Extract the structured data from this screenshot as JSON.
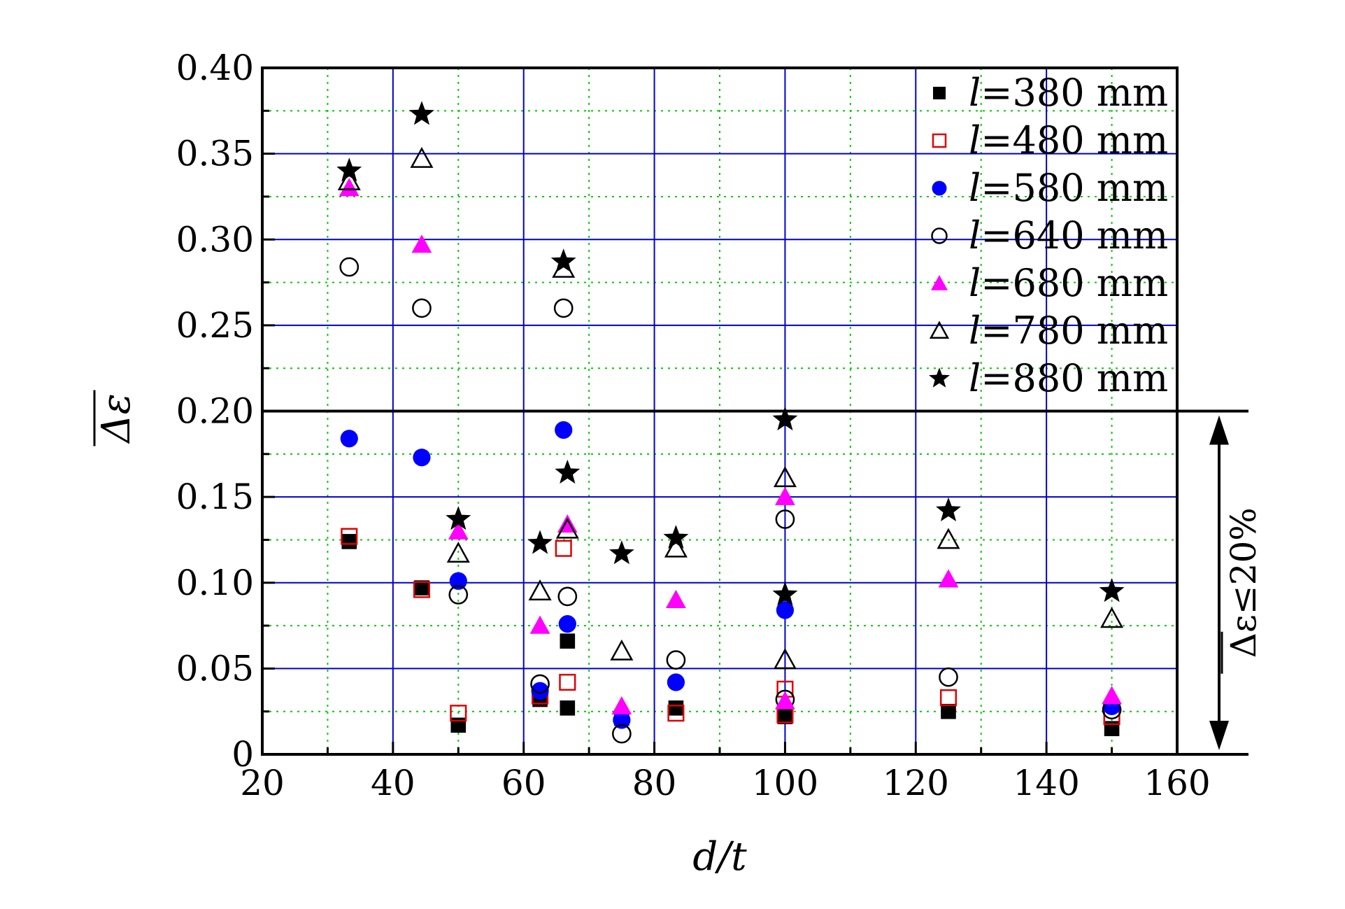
{
  "chart_data": {
    "type": "scatter",
    "xlabel": "d/t",
    "ylabel": "Δε",
    "xlim": [
      20,
      160
    ],
    "ylim": [
      0,
      0.4
    ],
    "x_ticks": [
      "20",
      "40",
      "60",
      "80",
      "100",
      "120",
      "140",
      "160"
    ],
    "y_ticks": [
      "0",
      "0.05",
      "0.10",
      "0.15",
      "0.20",
      "0.25",
      "0.30",
      "0.35",
      "0.40"
    ],
    "grid": true,
    "legend_position": "top-right",
    "threshold": {
      "y": 0.2,
      "label": "Δε≤20%"
    },
    "series": [
      {
        "name": "l=380 mm",
        "label_var": "l",
        "label_rest": "=380 mm",
        "marker": "square-filled",
        "color": "#000000",
        "points": [
          [
            33.3,
            0.124
          ],
          [
            44.4,
            0.097
          ],
          [
            50,
            0.017
          ],
          [
            62.5,
            0.032
          ],
          [
            66.7,
            0.066
          ],
          [
            66.7,
            0.027
          ],
          [
            75,
            0.021
          ],
          [
            83.3,
            0.027
          ],
          [
            100,
            0.022
          ],
          [
            125,
            0.025
          ],
          [
            150,
            0.015
          ]
        ]
      },
      {
        "name": "l=480 mm",
        "label_var": "l",
        "label_rest": "=480 mm",
        "marker": "square-open",
        "color": "#e00000",
        "points": [
          [
            33.3,
            0.127
          ],
          [
            44.4,
            0.096
          ],
          [
            50,
            0.024
          ],
          [
            62.5,
            0.034
          ],
          [
            66.1,
            0.12
          ],
          [
            66.7,
            0.042
          ],
          [
            83.3,
            0.024
          ],
          [
            100,
            0.038
          ],
          [
            100,
            0.023
          ],
          [
            125,
            0.033
          ],
          [
            150,
            0.022
          ]
        ]
      },
      {
        "name": "l=580 mm",
        "label_var": "l",
        "label_rest": "=580 mm",
        "marker": "circle-filled",
        "color": "#0000ff",
        "points": [
          [
            33.3,
            0.184
          ],
          [
            44.4,
            0.173
          ],
          [
            50,
            0.101
          ],
          [
            62.5,
            0.037
          ],
          [
            66.1,
            0.189
          ],
          [
            66.7,
            0.076
          ],
          [
            75,
            0.02
          ],
          [
            83.3,
            0.042
          ],
          [
            100,
            0.084
          ],
          [
            150,
            0.028
          ]
        ]
      },
      {
        "name": "l=640 mm",
        "label_var": "l",
        "label_rest": "=640 mm",
        "marker": "circle-open",
        "color": "#000000",
        "points": [
          [
            33.3,
            0.284
          ],
          [
            44.4,
            0.26
          ],
          [
            50,
            0.093
          ],
          [
            62.5,
            0.041
          ],
          [
            66.1,
            0.26
          ],
          [
            66.7,
            0.092
          ],
          [
            75,
            0.012
          ],
          [
            83.3,
            0.055
          ],
          [
            100,
            0.137
          ],
          [
            100,
            0.032
          ],
          [
            125,
            0.045
          ],
          [
            150,
            0.026
          ]
        ]
      },
      {
        "name": "l=680 mm",
        "label_var": "l",
        "label_rest": "=680 mm",
        "marker": "triangle-filled",
        "color": "#ff00ff",
        "points": [
          [
            33.3,
            0.33
          ],
          [
            44.4,
            0.297
          ],
          [
            50,
            0.13
          ],
          [
            62.5,
            0.075
          ],
          [
            66.7,
            0.134
          ],
          [
            75,
            0.028
          ],
          [
            83.3,
            0.09
          ],
          [
            100,
            0.15
          ],
          [
            100,
            0.031
          ],
          [
            125,
            0.102
          ],
          [
            150,
            0.034
          ]
        ]
      },
      {
        "name": "l=780 mm",
        "label_var": "l",
        "label_rest": "=780 mm",
        "marker": "triangle-open",
        "color": "#000000",
        "points": [
          [
            33.3,
            0.334
          ],
          [
            44.4,
            0.347
          ],
          [
            50,
            0.117
          ],
          [
            62.5,
            0.095
          ],
          [
            66.1,
            0.283
          ],
          [
            66.7,
            0.131
          ],
          [
            75,
            0.06
          ],
          [
            83.3,
            0.12
          ],
          [
            100,
            0.161
          ],
          [
            100,
            0.055
          ],
          [
            125,
            0.125
          ],
          [
            150,
            0.079
          ]
        ]
      },
      {
        "name": "l=880 mm",
        "label_var": "l",
        "label_rest": "=880 mm",
        "marker": "star-filled",
        "color": "#000000",
        "points": [
          [
            33.3,
            0.34
          ],
          [
            44.4,
            0.373
          ],
          [
            50,
            0.137
          ],
          [
            62.5,
            0.123
          ],
          [
            66.1,
            0.287
          ],
          [
            66.7,
            0.164
          ],
          [
            75,
            0.117
          ],
          [
            83.3,
            0.126
          ],
          [
            100,
            0.195
          ],
          [
            100,
            0.093
          ],
          [
            125,
            0.142
          ],
          [
            150,
            0.095
          ]
        ]
      }
    ]
  }
}
